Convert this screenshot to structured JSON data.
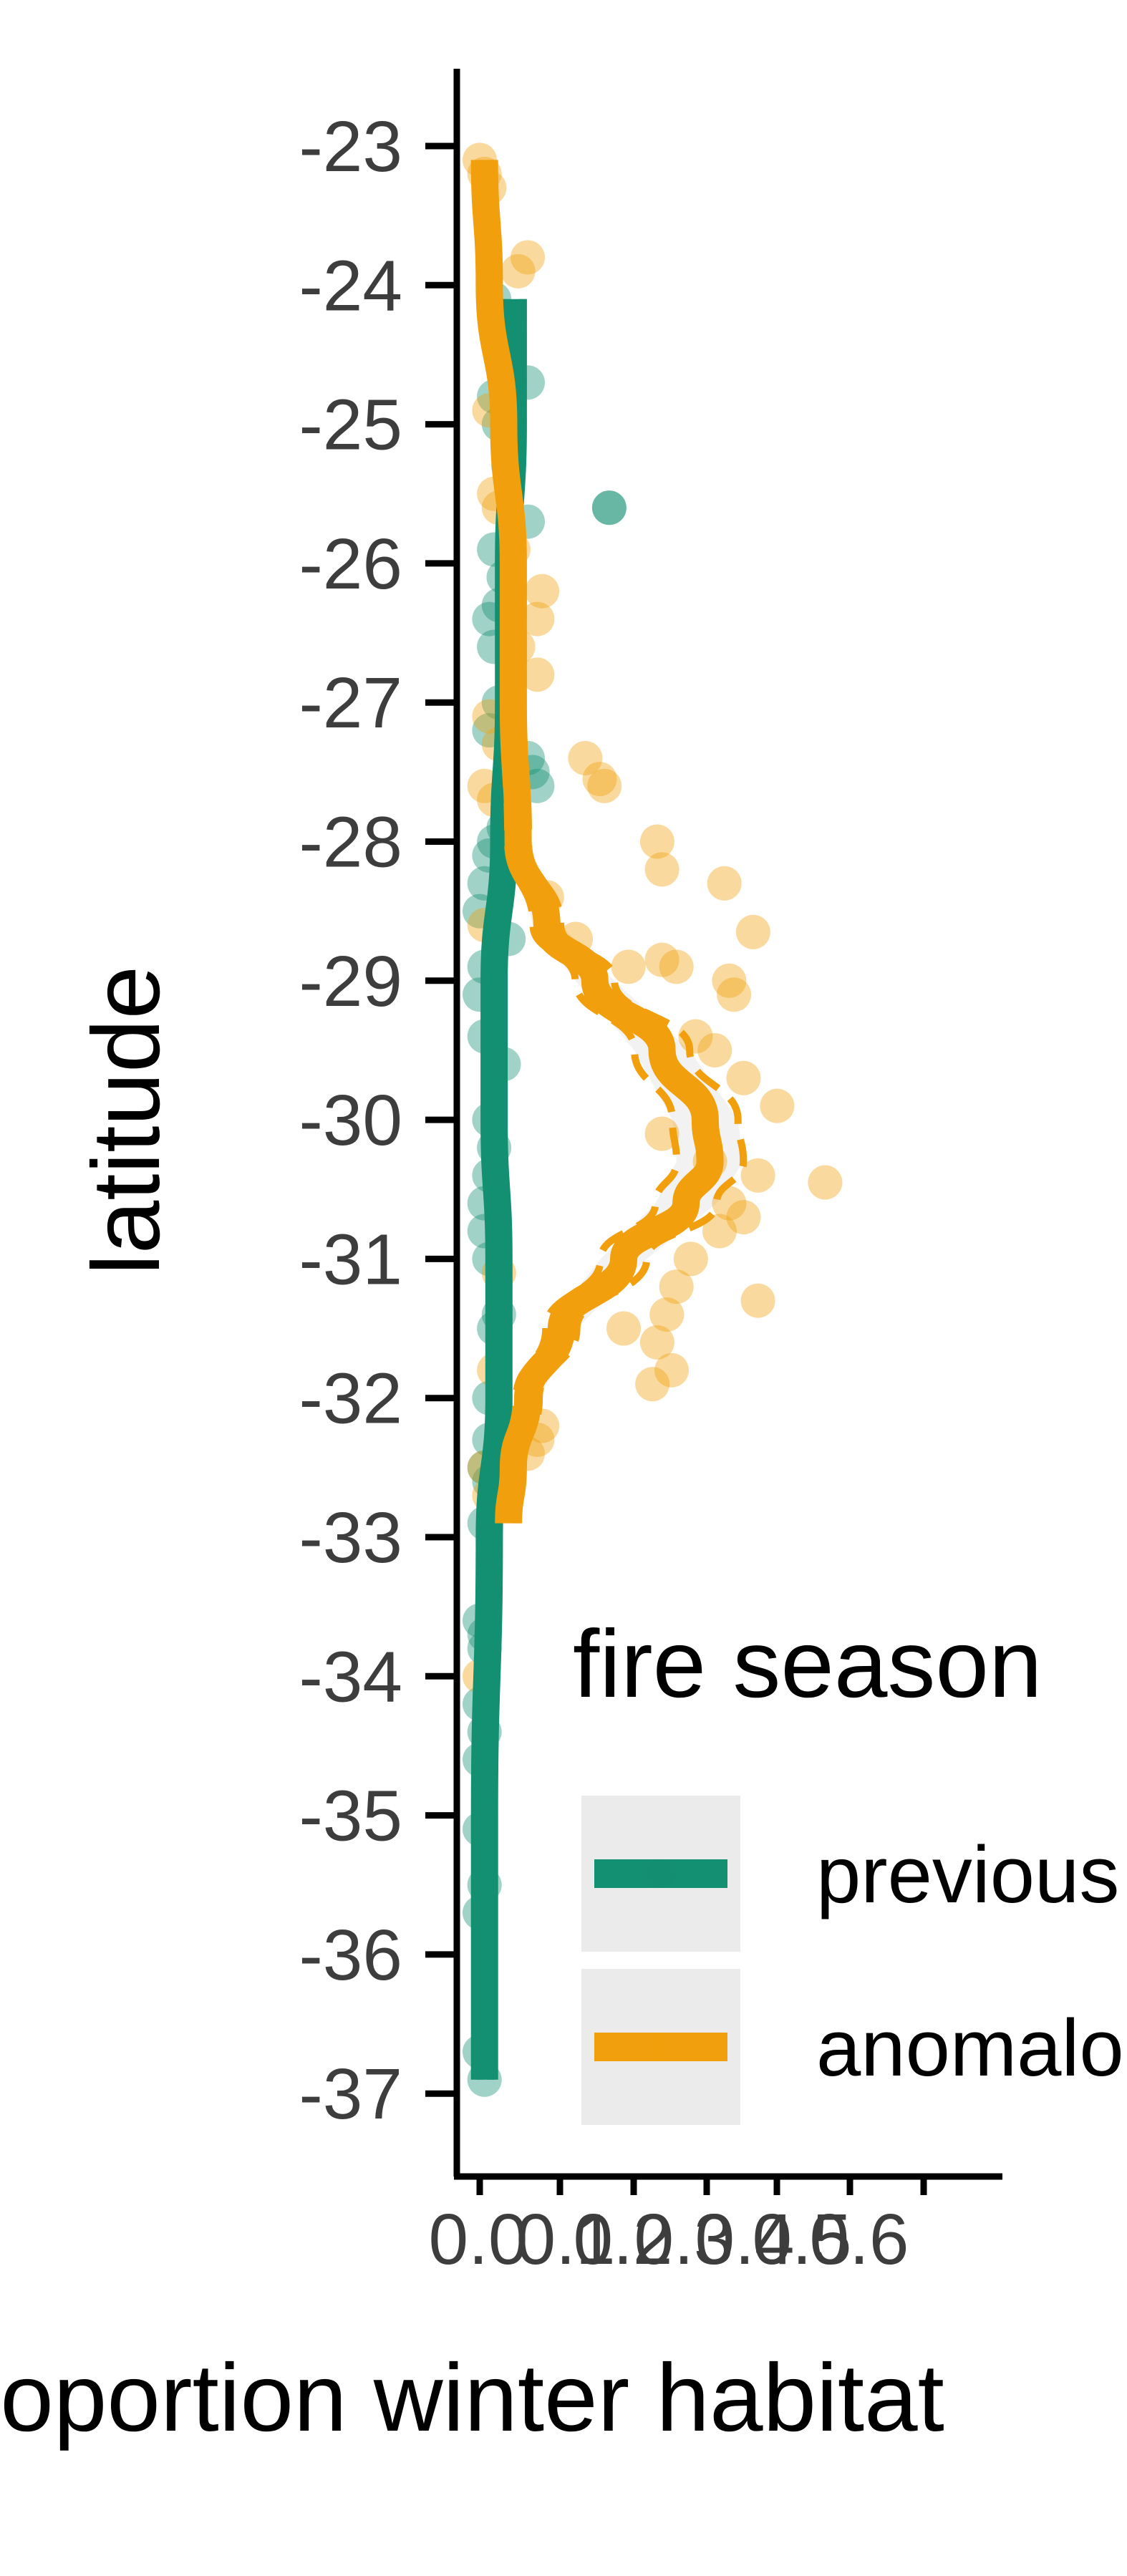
{
  "chart_data": {
    "type": "scatter",
    "title": "",
    "xlabel": "proportion winter habitat",
    "ylabel": "latitude",
    "xlim": [
      -0.03,
      0.9
    ],
    "ylim": [
      -37.6,
      -22.5
    ],
    "x_ticks": [
      "0.0",
      "0.1",
      "0.2",
      "0.3",
      "0.4",
      "0.5",
      "0.6"
    ],
    "x_tick_values": [
      0.0,
      0.1,
      0.2,
      0.3,
      0.4,
      0.5,
      0.6
    ],
    "y_ticks": [
      "-23",
      "-24",
      "-25",
      "-26",
      "-27",
      "-28",
      "-29",
      "-30",
      "-31",
      "-32",
      "-33",
      "-34",
      "-35",
      "-36",
      "-37"
    ],
    "y_tick_values": [
      -23,
      -24,
      -25,
      -26,
      -27,
      -28,
      -29,
      -30,
      -31,
      -32,
      -33,
      -34,
      -35,
      -36,
      -37
    ],
    "grid": false,
    "legend": {
      "title": "fire season",
      "position": "right",
      "entries": [
        "previous",
        "anomalous"
      ]
    },
    "colors": {
      "previous": "#138f72",
      "anomalous": "#f19f0c"
    },
    "series": [
      {
        "name": "previous",
        "color": "#138f72",
        "points": [
          {
            "x": 0.01,
            "y": -36.9
          },
          {
            "x": 0.0,
            "y": -36.7
          },
          {
            "x": 0.0,
            "y": -35.7
          },
          {
            "x": 0.01,
            "y": -35.5
          },
          {
            "x": 0.0,
            "y": -35.1
          },
          {
            "x": 0.0,
            "y": -34.6
          },
          {
            "x": 0.01,
            "y": -34.4
          },
          {
            "x": 0.0,
            "y": -34.2
          },
          {
            "x": 0.01,
            "y": -33.8
          },
          {
            "x": 0.01,
            "y": -33.7
          },
          {
            "x": 0.0,
            "y": -33.6
          },
          {
            "x": 0.01,
            "y": -32.9
          },
          {
            "x": 0.02,
            "y": -32.6
          },
          {
            "x": 0.01,
            "y": -32.5
          },
          {
            "x": 0.02,
            "y": -32.3
          },
          {
            "x": 0.02,
            "y": -32.0
          },
          {
            "x": 0.03,
            "y": -31.5
          },
          {
            "x": 0.04,
            "y": -31.4
          },
          {
            "x": 0.02,
            "y": -31.0
          },
          {
            "x": 0.01,
            "y": -30.8
          },
          {
            "x": 0.01,
            "y": -30.6
          },
          {
            "x": 0.02,
            "y": -30.4
          },
          {
            "x": 0.03,
            "y": -30.2
          },
          {
            "x": 0.02,
            "y": -30.0
          },
          {
            "x": 0.05,
            "y": -29.6
          },
          {
            "x": 0.01,
            "y": -29.4
          },
          {
            "x": 0.0,
            "y": -29.1
          },
          {
            "x": 0.01,
            "y": -28.9
          },
          {
            "x": 0.06,
            "y": -28.7
          },
          {
            "x": 0.0,
            "y": -28.5
          },
          {
            "x": 0.01,
            "y": -28.3
          },
          {
            "x": 0.02,
            "y": -28.1
          },
          {
            "x": 0.03,
            "y": -28.0
          },
          {
            "x": 0.05,
            "y": -27.9
          },
          {
            "x": 0.11,
            "y": -27.5
          },
          {
            "x": 0.12,
            "y": -27.6
          },
          {
            "x": 0.1,
            "y": -27.4
          },
          {
            "x": 0.02,
            "y": -27.2
          },
          {
            "x": 0.04,
            "y": -27.0
          },
          {
            "x": 0.03,
            "y": -26.6
          },
          {
            "x": 0.02,
            "y": -26.4
          },
          {
            "x": 0.04,
            "y": -26.3
          },
          {
            "x": 0.05,
            "y": -26.1
          },
          {
            "x": 0.03,
            "y": -25.9
          },
          {
            "x": 0.1,
            "y": -25.7
          },
          {
            "x": 0.27,
            "y": -25.6
          },
          {
            "x": 0.27,
            "y": -25.6
          },
          {
            "x": 0.06,
            "y": -25.3
          },
          {
            "x": 0.04,
            "y": -25.0
          },
          {
            "x": 0.03,
            "y": -24.8
          },
          {
            "x": 0.1,
            "y": -24.7
          },
          {
            "x": 0.05,
            "y": -24.3
          },
          {
            "x": 0.03,
            "y": -24.1
          }
        ],
        "trend": [
          {
            "x": 0.01,
            "y": -36.9
          },
          {
            "x": 0.01,
            "y": -35.0
          },
          {
            "x": 0.02,
            "y": -33.0
          },
          {
            "x": 0.04,
            "y": -32.0
          },
          {
            "x": 0.04,
            "y": -31.0
          },
          {
            "x": 0.03,
            "y": -30.0
          },
          {
            "x": 0.03,
            "y": -29.0
          },
          {
            "x": 0.05,
            "y": -28.0
          },
          {
            "x": 0.06,
            "y": -27.0
          },
          {
            "x": 0.06,
            "y": -26.0
          },
          {
            "x": 0.07,
            "y": -25.0
          },
          {
            "x": 0.07,
            "y": -24.1
          }
        ]
      },
      {
        "name": "anomalous",
        "color": "#f19f0c",
        "points": [
          {
            "x": 0.0,
            "y": -23.1
          },
          {
            "x": 0.01,
            "y": -23.2
          },
          {
            "x": 0.02,
            "y": -23.3
          },
          {
            "x": 0.1,
            "y": -23.8
          },
          {
            "x": 0.08,
            "y": -23.9
          },
          {
            "x": 0.02,
            "y": -24.9
          },
          {
            "x": 0.03,
            "y": -25.5
          },
          {
            "x": 0.04,
            "y": -25.6
          },
          {
            "x": 0.07,
            "y": -25.9
          },
          {
            "x": 0.13,
            "y": -26.2
          },
          {
            "x": 0.12,
            "y": -26.4
          },
          {
            "x": 0.08,
            "y": -26.6
          },
          {
            "x": 0.12,
            "y": -26.8
          },
          {
            "x": 0.02,
            "y": -27.1
          },
          {
            "x": 0.04,
            "y": -27.3
          },
          {
            "x": 0.22,
            "y": -27.4
          },
          {
            "x": 0.25,
            "y": -27.55
          },
          {
            "x": 0.01,
            "y": -27.6
          },
          {
            "x": 0.26,
            "y": -27.6
          },
          {
            "x": 0.03,
            "y": -27.7
          },
          {
            "x": 0.37,
            "y": -28.0
          },
          {
            "x": 0.38,
            "y": -28.2
          },
          {
            "x": 0.51,
            "y": -28.3
          },
          {
            "x": 0.14,
            "y": -28.4
          },
          {
            "x": 0.01,
            "y": -28.6
          },
          {
            "x": 0.57,
            "y": -28.65
          },
          {
            "x": 0.2,
            "y": -28.7
          },
          {
            "x": 0.38,
            "y": -28.85
          },
          {
            "x": 0.31,
            "y": -28.9
          },
          {
            "x": 0.41,
            "y": -28.9
          },
          {
            "x": 0.52,
            "y": -29.0
          },
          {
            "x": 0.53,
            "y": -29.1
          },
          {
            "x": 0.45,
            "y": -29.4
          },
          {
            "x": 0.49,
            "y": -29.5
          },
          {
            "x": 0.55,
            "y": -29.7
          },
          {
            "x": 0.62,
            "y": -29.9
          },
          {
            "x": 0.38,
            "y": -30.1
          },
          {
            "x": 0.48,
            "y": -30.3
          },
          {
            "x": 0.58,
            "y": -30.4
          },
          {
            "x": 0.72,
            "y": -30.45
          },
          {
            "x": 0.52,
            "y": -30.6
          },
          {
            "x": 0.55,
            "y": -30.7
          },
          {
            "x": 0.5,
            "y": -30.8
          },
          {
            "x": 0.44,
            "y": -31.0
          },
          {
            "x": 0.04,
            "y": -31.1
          },
          {
            "x": 0.41,
            "y": -31.2
          },
          {
            "x": 0.58,
            "y": -31.3
          },
          {
            "x": 0.39,
            "y": -31.4
          },
          {
            "x": 0.3,
            "y": -31.5
          },
          {
            "x": 0.37,
            "y": -31.6
          },
          {
            "x": 0.4,
            "y": -31.8
          },
          {
            "x": 0.36,
            "y": -31.9
          },
          {
            "x": 0.03,
            "y": -31.8
          },
          {
            "x": 0.13,
            "y": -32.2
          },
          {
            "x": 0.12,
            "y": -32.3
          },
          {
            "x": 0.1,
            "y": -32.4
          },
          {
            "x": 0.01,
            "y": -32.5
          },
          {
            "x": 0.02,
            "y": -32.7
          },
          {
            "x": 0.0,
            "y": -34.0
          }
        ],
        "trend": [
          {
            "x": 0.01,
            "y": -23.1
          },
          {
            "x": 0.02,
            "y": -24.0
          },
          {
            "x": 0.05,
            "y": -25.0
          },
          {
            "x": 0.07,
            "y": -26.0
          },
          {
            "x": 0.07,
            "y": -27.0
          },
          {
            "x": 0.08,
            "y": -28.0
          },
          {
            "x": 0.14,
            "y": -28.6
          },
          {
            "x": 0.24,
            "y": -29.0
          },
          {
            "x": 0.38,
            "y": -29.5
          },
          {
            "x": 0.47,
            "y": -30.0
          },
          {
            "x": 0.48,
            "y": -30.3
          },
          {
            "x": 0.43,
            "y": -30.6
          },
          {
            "x": 0.3,
            "y": -31.0
          },
          {
            "x": 0.17,
            "y": -31.5
          },
          {
            "x": 0.1,
            "y": -32.0
          },
          {
            "x": 0.07,
            "y": -32.5
          },
          {
            "x": 0.06,
            "y": -32.9
          }
        ]
      }
    ]
  }
}
